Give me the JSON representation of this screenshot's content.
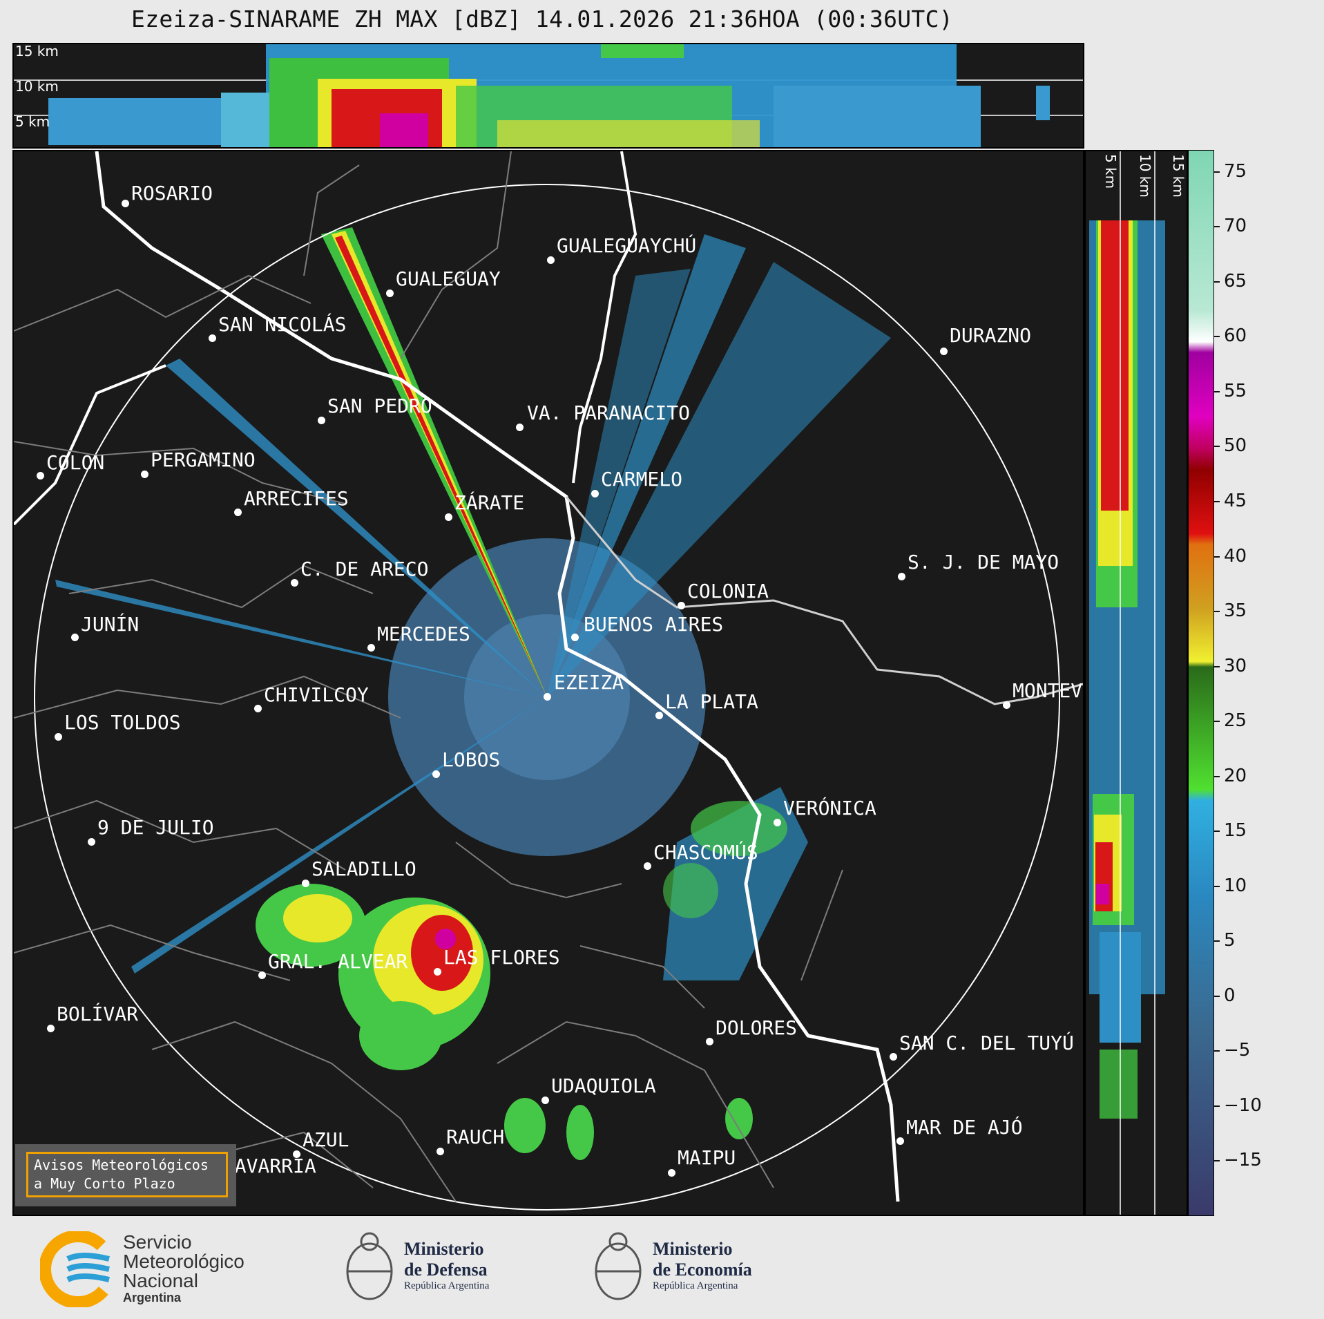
{
  "title": "Ezeiza-SINARAME ZH MAX [dBZ] 14.01.2026 21:36HOA (00:36UTC)",
  "top_panel": {
    "height_labels": [
      "15 km",
      "10 km",
      "5 km"
    ]
  },
  "side_panel": {
    "height_labels": [
      "5 km",
      "10 km",
      "15 km"
    ]
  },
  "colorbar": {
    "ticks": [
      "75",
      "70",
      "65",
      "60",
      "55",
      "50",
      "45",
      "40",
      "35",
      "30",
      "25",
      "20",
      "15",
      "10",
      "5",
      "0",
      "−5",
      "−10",
      "−15"
    ],
    "min": -20,
    "max": 77
  },
  "cities": [
    {
      "name": "ROSARIO"
    },
    {
      "name": "GUALEGUAYCHÚ"
    },
    {
      "name": "GUALEGUAY"
    },
    {
      "name": "SAN NICOLÁS"
    },
    {
      "name": "DURAZNO"
    },
    {
      "name": "SAN PEDRO"
    },
    {
      "name": "VA. PARANACITO"
    },
    {
      "name": "COLON"
    },
    {
      "name": "PERGAMINO"
    },
    {
      "name": "CARMELO"
    },
    {
      "name": "ARRECIFES"
    },
    {
      "name": "ZÁRATE"
    },
    {
      "name": "S. J. DE MAYO"
    },
    {
      "name": "C. DE ARECO"
    },
    {
      "name": "COLONIA"
    },
    {
      "name": "JUNÍN"
    },
    {
      "name": "BUENOS AIRES"
    },
    {
      "name": "MERCEDES"
    },
    {
      "name": "EZEIZA"
    },
    {
      "name": "MONTEVIDEO"
    },
    {
      "name": "CHIVILCOY"
    },
    {
      "name": "LA PLATA"
    },
    {
      "name": "LOS TOLDOS"
    },
    {
      "name": "LOBOS"
    },
    {
      "name": "VERÓNICA"
    },
    {
      "name": "9 DE JULIO"
    },
    {
      "name": "CHASCOMÚS"
    },
    {
      "name": "SALADILLO"
    },
    {
      "name": "GRAL. ALVEAR"
    },
    {
      "name": "LAS FLORES"
    },
    {
      "name": "BOLÍVAR"
    },
    {
      "name": "DOLORES"
    },
    {
      "name": "SAN C. DEL TUYÚ"
    },
    {
      "name": "UDAQUIOLA"
    },
    {
      "name": "MAR DE AJÓ"
    },
    {
      "name": "AZUL"
    },
    {
      "name": "RAUCH"
    },
    {
      "name": "MAIPU"
    },
    {
      "name": "OLAVARRÍA"
    }
  ],
  "badge": {
    "line1": "Avisos Meteorológicos",
    "line2": "a Muy Corto Plazo"
  },
  "logos": {
    "smn": {
      "line1": "Servicio",
      "line2": "Meteorológico",
      "line3": "Nacional",
      "line4": "Argentina"
    },
    "defensa": {
      "line1": "Ministerio",
      "line2": "de Defensa",
      "line3": "República Argentina"
    },
    "economia": {
      "line1": "Ministerio",
      "line2": "de Economía",
      "line3": "República Argentina"
    }
  },
  "colors": {
    "background": "#1a1a1a",
    "badge_border": "#f0a000",
    "smn_orange": "#f7a600",
    "smn_blue": "#2c9fd6"
  }
}
